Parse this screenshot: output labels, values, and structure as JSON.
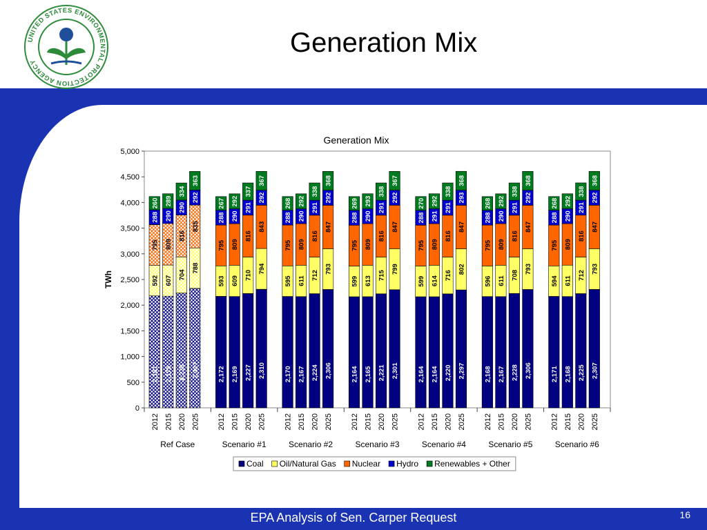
{
  "slide": {
    "title": "Generation Mix",
    "footer": "EPA Analysis of Sen. Carper Request",
    "page_number": "16",
    "logo": {
      "ring_text": "UNITED STATES ENVIRONMENTAL PROTECTION AGENCY",
      "colors": {
        "green": "#2e8b3a",
        "blue": "#1f4e9b"
      }
    }
  },
  "chart_data": {
    "type": "bar",
    "stacked": true,
    "title": "Generation Mix",
    "ylabel": "TWh",
    "ylim": [
      0,
      5000
    ],
    "yticks": [
      "0",
      "500",
      "1,000",
      "1,500",
      "2,000",
      "2,500",
      "3,000",
      "3,500",
      "4,000",
      "4,500",
      "5,000"
    ],
    "grid": false,
    "legend_position": "bottom",
    "groups": [
      "Ref Case",
      "Scenario #1",
      "Scenario #2",
      "Scenario #3",
      "Scenario #4",
      "Scenario #5",
      "Scenario #6"
    ],
    "years": [
      "2012",
      "2015",
      "2020",
      "2025"
    ],
    "hatched_group": "Ref Case",
    "series": [
      {
        "name": "Coal",
        "color": "#000080",
        "values": [
          [
            2181,
            2175,
            2236,
            2327
          ],
          [
            2172,
            2169,
            2227,
            2310
          ],
          [
            2170,
            2167,
            2224,
            2306
          ],
          [
            2164,
            2165,
            2221,
            2301
          ],
          [
            2164,
            2164,
            2220,
            2297
          ],
          [
            2168,
            2167,
            2228,
            2306
          ],
          [
            2171,
            2168,
            2225,
            2307
          ]
        ]
      },
      {
        "name": "Oil/Natural Gas",
        "color": "#ffff66",
        "values": [
          [
            592,
            607,
            704,
            788
          ],
          [
            593,
            609,
            710,
            794
          ],
          [
            595,
            611,
            712,
            793
          ],
          [
            599,
            613,
            715,
            799
          ],
          [
            599,
            614,
            716,
            802
          ],
          [
            596,
            611,
            708,
            793
          ],
          [
            594,
            611,
            712,
            793
          ]
        ]
      },
      {
        "name": "Nuclear",
        "color": "#ff6600",
        "values": [
          [
            795,
            809,
            816,
            835
          ],
          [
            795,
            809,
            816,
            843
          ],
          [
            795,
            809,
            816,
            847
          ],
          [
            795,
            809,
            816,
            847
          ],
          [
            795,
            809,
            816,
            847
          ],
          [
            795,
            809,
            816,
            847
          ],
          [
            795,
            809,
            816,
            847
          ]
        ]
      },
      {
        "name": "Hydro",
        "color": "#0000cc",
        "values": [
          [
            288,
            290,
            290,
            292
          ],
          [
            288,
            290,
            291,
            292
          ],
          [
            288,
            290,
            291,
            292
          ],
          [
            288,
            290,
            291,
            292
          ],
          [
            288,
            291,
            291,
            293
          ],
          [
            288,
            290,
            291,
            292
          ],
          [
            288,
            290,
            291,
            292
          ]
        ]
      },
      {
        "name": "Renewables + Other",
        "color": "#007a1e",
        "values": [
          [
            260,
            289,
            334,
            363
          ],
          [
            267,
            292,
            337,
            367
          ],
          [
            268,
            292,
            338,
            368
          ],
          [
            269,
            293,
            338,
            367
          ],
          [
            270,
            292,
            338,
            368
          ],
          [
            268,
            292,
            338,
            368
          ],
          [
            268,
            292,
            338,
            368
          ]
        ]
      }
    ]
  }
}
